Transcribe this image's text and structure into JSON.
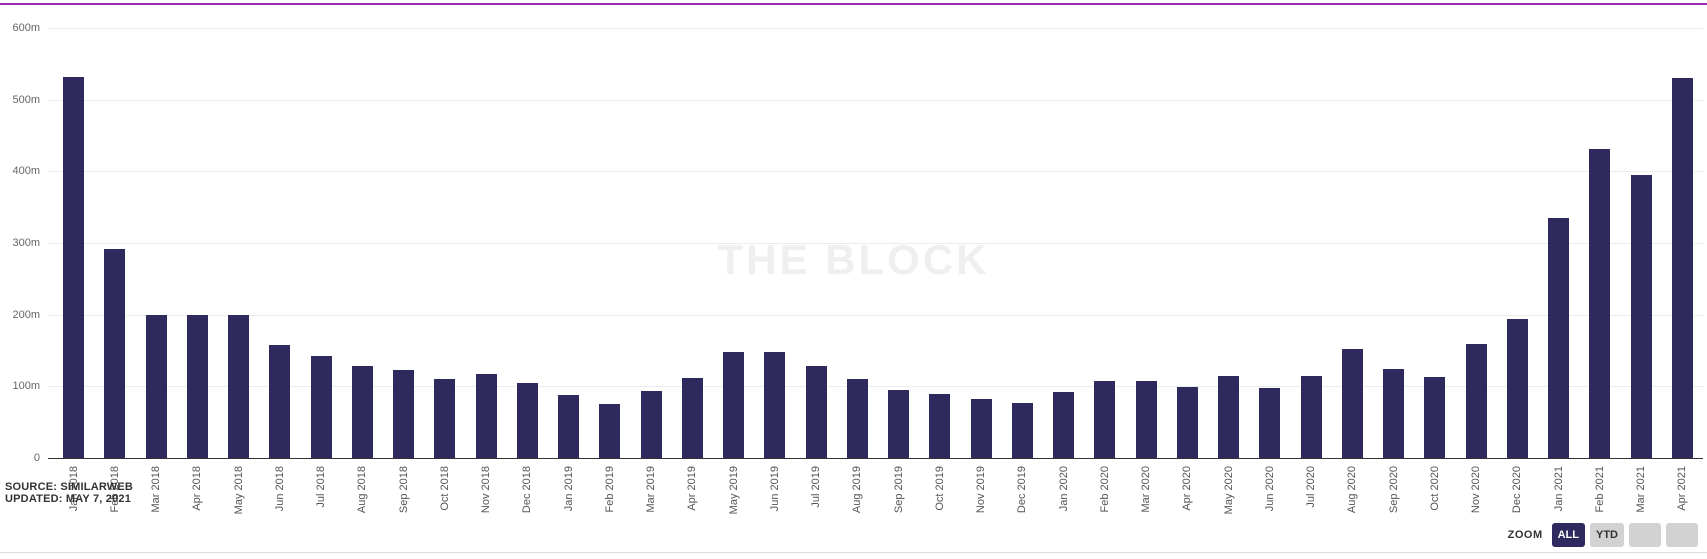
{
  "colors": {
    "bar": "#2e2a5e",
    "top_accent": "#9c27b0",
    "active_button_bg": "#2e2a5e",
    "active_button_text": "#ffffff",
    "inactive_button_bg": "#d2d2d2",
    "gridline": "#ececec",
    "axis_line": "#333333"
  },
  "watermark": "THE BLOCK",
  "chart_data": {
    "type": "bar",
    "title": "",
    "xlabel": "",
    "ylabel": "",
    "ylim": [
      0,
      600
    ],
    "grid": true,
    "legend": "none",
    "unit": "millions",
    "yticks": [
      {
        "value": 600,
        "label": "600m"
      },
      {
        "value": 500,
        "label": "500m"
      },
      {
        "value": 400,
        "label": "400m"
      },
      {
        "value": 300,
        "label": "300m"
      },
      {
        "value": 200,
        "label": "200m"
      },
      {
        "value": 100,
        "label": "100m"
      },
      {
        "value": 0,
        "label": "0"
      }
    ],
    "categories": [
      "Jan 2018",
      "Feb 2018",
      "Mar 2018",
      "Apr 2018",
      "May 2018",
      "Jun 2018",
      "Jul 2018",
      "Aug 2018",
      "Sep 2018",
      "Oct 2018",
      "Nov 2018",
      "Dec 2018",
      "Jan 2019",
      "Feb 2019",
      "Mar 2019",
      "Apr 2019",
      "May 2019",
      "Jun 2019",
      "Jul 2019",
      "Aug 2019",
      "Sep 2019",
      "Oct 2019",
      "Nov 2019",
      "Dec 2019",
      "Jan 2020",
      "Feb 2020",
      "Mar 2020",
      "Apr 2020",
      "May 2020",
      "Jun 2020",
      "Jul 2020",
      "Aug 2020",
      "Sep 2020",
      "Oct 2020",
      "Nov 2020",
      "Dec 2020",
      "Jan 2021",
      "Feb 2021",
      "Mar 2021",
      "Apr 2021"
    ],
    "values": [
      532,
      291,
      200,
      200,
      200,
      158,
      143,
      128,
      123,
      110,
      117,
      105,
      88,
      76,
      93,
      112,
      148,
      148,
      128,
      110,
      95,
      89,
      83,
      77,
      92,
      108,
      108,
      99,
      114,
      97,
      115,
      152,
      124,
      113,
      159,
      194,
      335,
      431,
      395,
      530
    ]
  },
  "footer": {
    "source_line1": "SOURCE: SIMILARWEB",
    "source_line2": "UPDATED: MAY 7, 2021",
    "zoom_label": "ZOOM",
    "zoom_buttons": [
      {
        "label": "ALL",
        "active": true
      },
      {
        "label": "YTD",
        "active": false
      },
      {
        "label": "",
        "active": false
      },
      {
        "label": "",
        "active": false
      }
    ]
  }
}
